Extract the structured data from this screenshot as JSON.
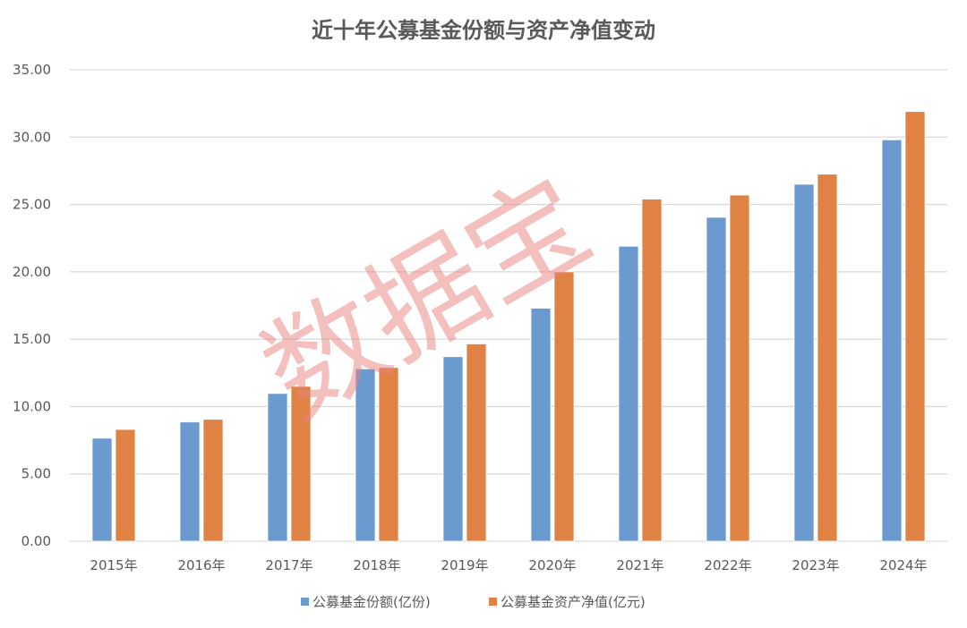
{
  "chart_data": {
    "type": "bar",
    "title": "近十年公募基金份额与资产净值变动",
    "categories": [
      "2015年",
      "2016年",
      "2017年",
      "2018年",
      "2019年",
      "2020年",
      "2021年",
      "2022年",
      "2023年",
      "2024年"
    ],
    "series": [
      {
        "name": "公募基金份额(亿份)",
        "color": "#6a9ad0",
        "values": [
          7.65,
          8.85,
          10.97,
          12.8,
          13.7,
          17.3,
          21.9,
          24.05,
          26.5,
          29.8
        ]
      },
      {
        "name": "公募基金资产净值(亿元)",
        "color": "#e08244",
        "values": [
          8.3,
          9.05,
          11.5,
          12.9,
          14.65,
          20.0,
          25.4,
          25.7,
          27.25,
          31.9
        ]
      }
    ],
    "yticks": [
      "0.00",
      "5.00",
      "10.00",
      "15.00",
      "20.00",
      "25.00",
      "30.00",
      "35.00"
    ],
    "ylim": [
      0,
      35
    ],
    "grid": true,
    "legend_position": "bottom",
    "xlabel": "",
    "ylabel": ""
  },
  "watermark": "数据宝"
}
